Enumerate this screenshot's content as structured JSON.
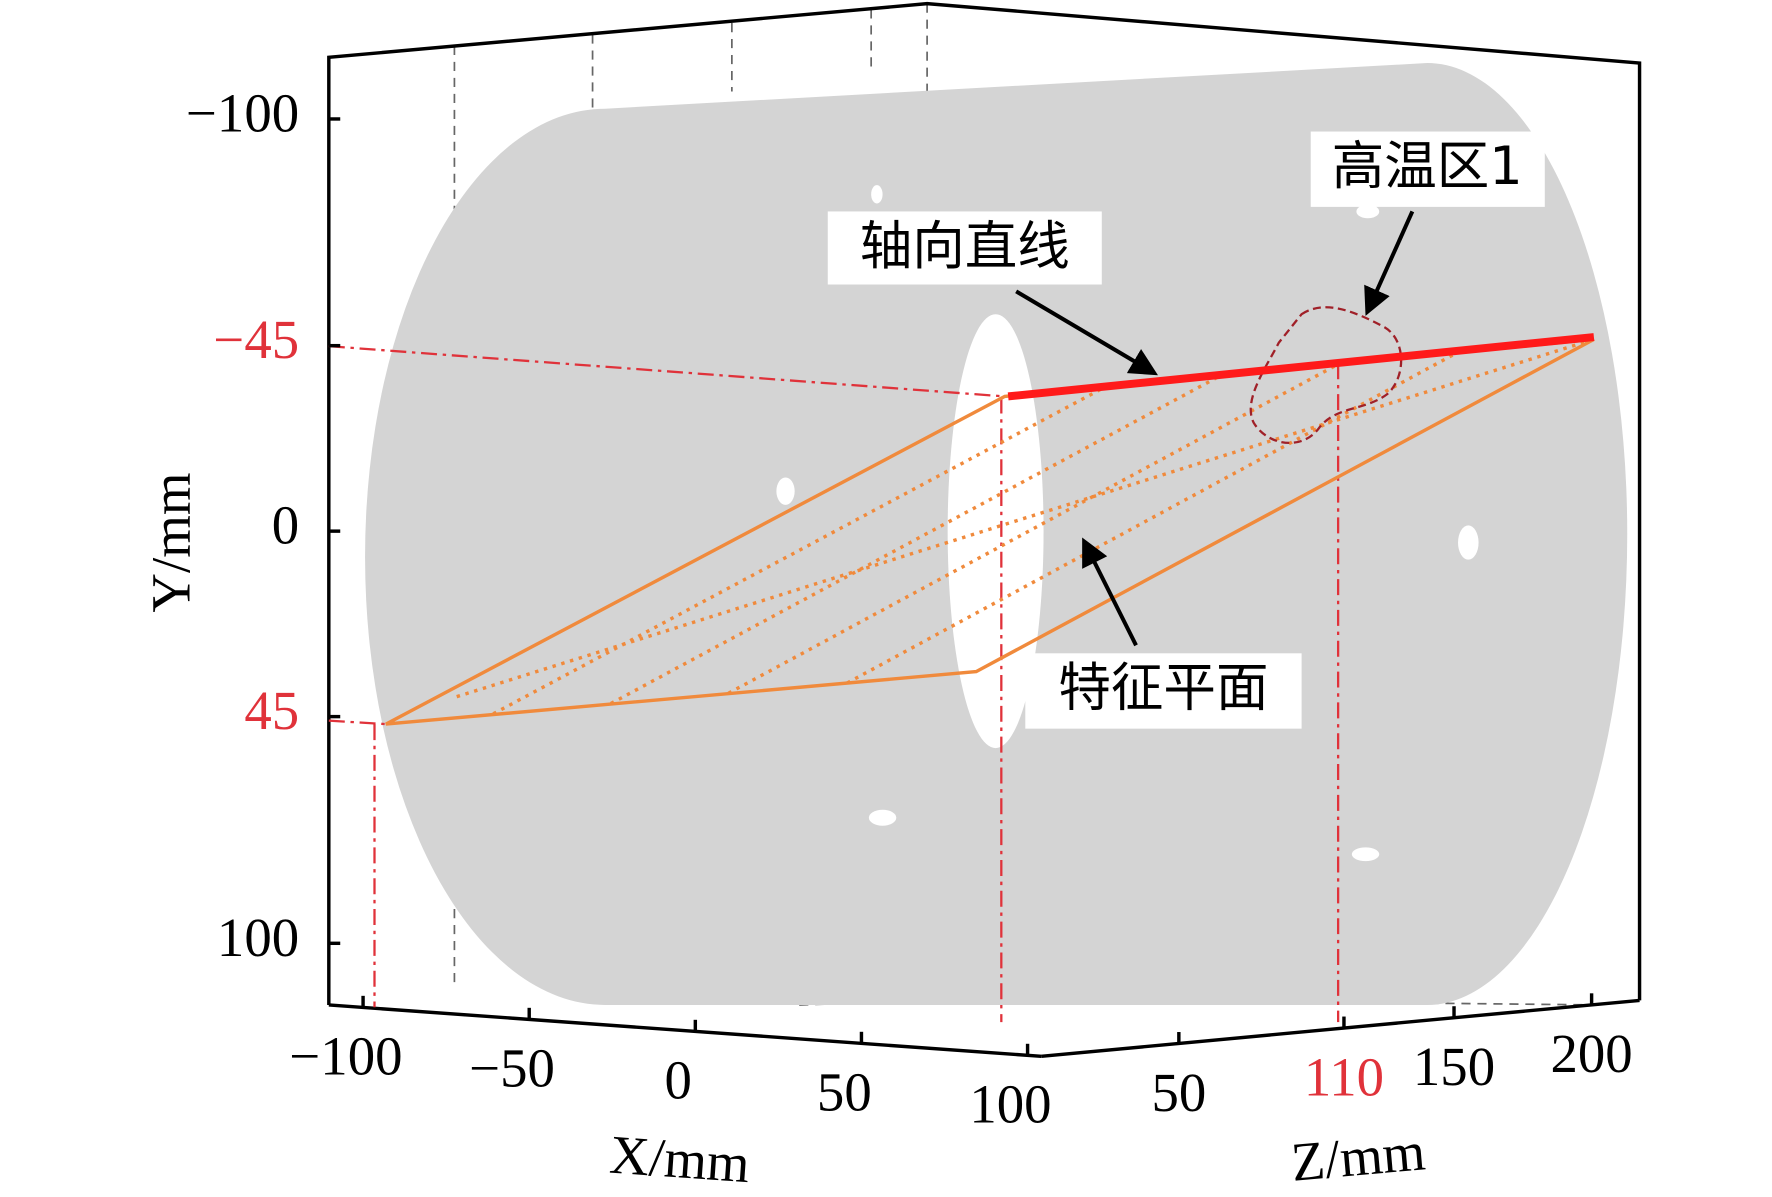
{
  "chart_data": {
    "type": "3d-box",
    "xlabel": "X/mm",
    "ylabel": "Y/mm",
    "zlabel": "Z/mm",
    "xticks": [
      {
        "value": -100,
        "label": "−100"
      },
      {
        "value": -50,
        "label": "−50"
      },
      0,
      50,
      100
    ],
    "yticks": [
      {
        "value": -100,
        "label": "−100"
      },
      {
        "value": -45,
        "label": "−45"
      },
      0,
      45,
      100
    ],
    "zticks": [
      50,
      110,
      150,
      200
    ],
    "xtick_colors": [
      "#000000",
      "#000000",
      "#000000",
      "#000000",
      "#000000"
    ],
    "ytick_colors": [
      "#000000",
      "#e0323a",
      "#000000",
      "#e0323a",
      "#000000"
    ],
    "ztick_colors": [
      "#000000",
      "#e0323a",
      "#000000",
      "#000000"
    ],
    "annotations": [
      "轴向直线",
      "高温区1",
      "特征平面"
    ]
  }
}
